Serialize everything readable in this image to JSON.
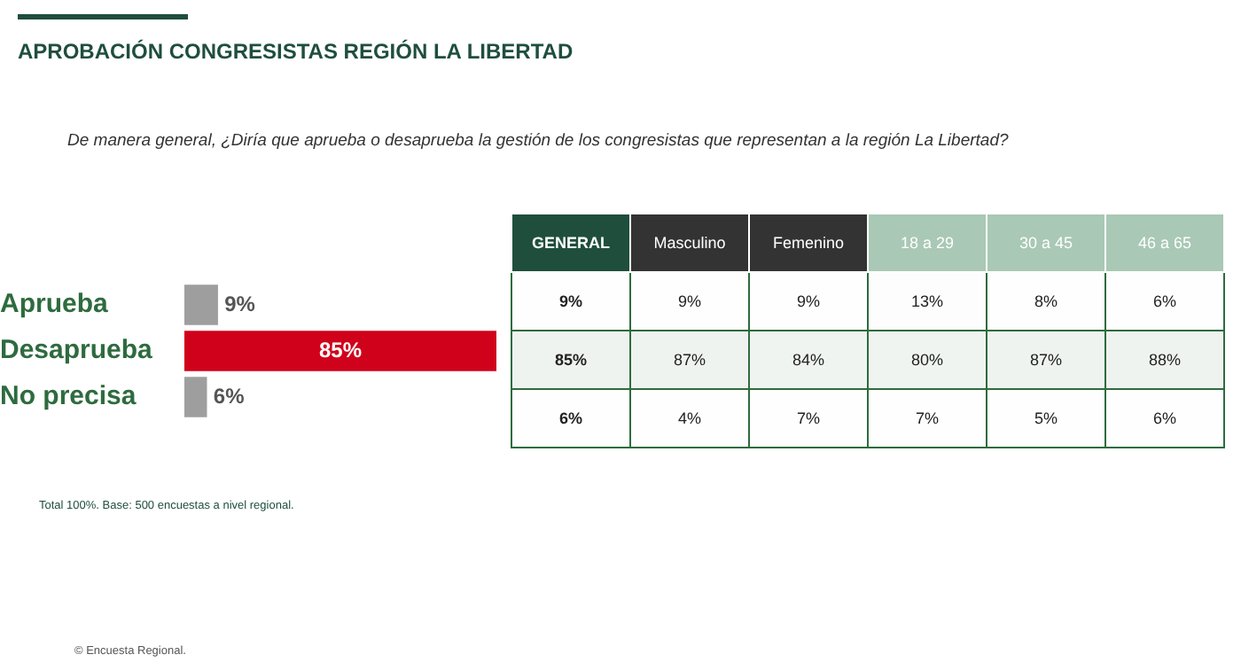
{
  "chart_data": [
    {
      "type": "bar",
      "title": "APROBACIÓN CONGRESISTAS REGIÓN LA LIBERTAD",
      "subtitle": "De manera general, ¿Diría que aprueba o desaprueba la gestión de los congresistas que representan a la región La Libertad?",
      "orientation": "horizontal",
      "categories": [
        "Aprueba",
        "Desaprueba",
        "No precisa"
      ],
      "values": [
        9,
        85,
        6
      ],
      "colors": [
        "#9e9e9e",
        "#d0021b",
        "#9e9e9e"
      ],
      "value_labels": [
        "9%",
        "85%",
        "6%"
      ],
      "annotations": [
        "Total 100%. Base: 500 encuestas a nivel regional.",
        "© Encuesta Regional."
      ]
    },
    {
      "type": "heatmap",
      "categories": [
        "GENERAL",
        "Masculino",
        "Femenino",
        "18 a 29",
        "30 a 45",
        "46 a 65"
      ],
      "y_categories": [
        null,
        null,
        null
      ],
      "colors": [
        "#1f4e3d",
        "#333333",
        "#333333",
        "#a9c8b5",
        "#a9c8b5",
        "#a9c8b5"
      ],
      "cells": [
        [
          9,
          9,
          9,
          13,
          8,
          6
        ],
        [
          85,
          87,
          84,
          80,
          87,
          88
        ],
        [
          6,
          4,
          7,
          7,
          5,
          6
        ]
      ],
      "cell_labels": [
        [
          "9%",
          "9%",
          "9%",
          "13%",
          "8%",
          "6%"
        ],
        [
          "85%",
          "87%",
          "84%",
          "80%",
          "87%",
          "88%"
        ],
        [
          "6%",
          "4%",
          "7%",
          "7%",
          "5%",
          "6%"
        ]
      ]
    }
  ]
}
